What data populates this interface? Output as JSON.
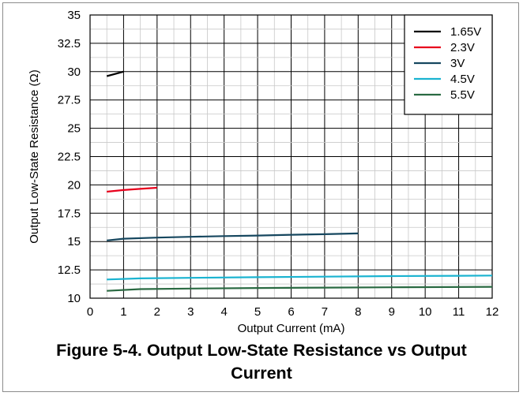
{
  "chart_data": {
    "type": "line",
    "xlabel": "Output Current (mA)",
    "ylabel": "Output Low-State Resistance (Ω)",
    "xlim": [
      0,
      12
    ],
    "ylim": [
      10,
      35
    ],
    "x_ticks": [
      "0",
      "1",
      "2",
      "3",
      "4",
      "5",
      "6",
      "7",
      "8",
      "9",
      "10",
      "11",
      "12"
    ],
    "y_ticks": [
      "10",
      "12.5",
      "15",
      "17.5",
      "20",
      "22.5",
      "25",
      "27.5",
      "30",
      "32.5",
      "35"
    ],
    "x_minor_step": 0.5,
    "y_minor_step": 1.25,
    "grid": true,
    "legend_position": "top-right",
    "series": [
      {
        "name": "1.65V",
        "color": "#000000",
        "points": [
          [
            0.5,
            29.6
          ],
          [
            0.75,
            29.8
          ],
          [
            1.0,
            30.0
          ]
        ]
      },
      {
        "name": "2.3V",
        "color": "#e8001c",
        "points": [
          [
            0.5,
            19.4
          ],
          [
            1.0,
            19.55
          ],
          [
            1.5,
            19.65
          ],
          [
            2.0,
            19.75
          ]
        ]
      },
      {
        "name": "3V",
        "color": "#16475f",
        "points": [
          [
            0.5,
            15.1
          ],
          [
            1.0,
            15.25
          ],
          [
            2.0,
            15.35
          ],
          [
            3.0,
            15.42
          ],
          [
            4.0,
            15.48
          ],
          [
            5.0,
            15.53
          ],
          [
            6.0,
            15.6
          ],
          [
            7.0,
            15.65
          ],
          [
            8.0,
            15.72
          ]
        ]
      },
      {
        "name": "4.5V",
        "color": "#1ab3d0",
        "points": [
          [
            0.5,
            11.65
          ],
          [
            1.5,
            11.75
          ],
          [
            3.0,
            11.8
          ],
          [
            5.0,
            11.85
          ],
          [
            7.0,
            11.9
          ],
          [
            9.0,
            11.95
          ],
          [
            11.0,
            11.98
          ],
          [
            12.0,
            12.0
          ]
        ]
      },
      {
        "name": "5.5V",
        "color": "#2a6a42",
        "points": [
          [
            0.5,
            10.65
          ],
          [
            1.5,
            10.8
          ],
          [
            3.0,
            10.85
          ],
          [
            5.0,
            10.9
          ],
          [
            7.0,
            10.93
          ],
          [
            9.0,
            10.96
          ],
          [
            12.0,
            11.0
          ]
        ]
      }
    ]
  },
  "caption": {
    "line1": "Figure 5-4. Output Low-State Resistance vs Output",
    "line2": "Current"
  }
}
